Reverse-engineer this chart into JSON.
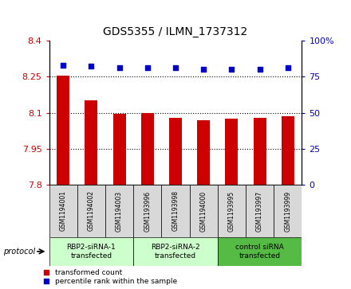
{
  "title": "GDS5355 / ILMN_1737312",
  "samples": [
    "GSM1194001",
    "GSM1194002",
    "GSM1194003",
    "GSM1193996",
    "GSM1193998",
    "GSM1194000",
    "GSM1193995",
    "GSM1193997",
    "GSM1193999"
  ],
  "bar_values": [
    8.255,
    8.15,
    8.095,
    8.1,
    8.08,
    8.07,
    8.075,
    8.08,
    8.085
  ],
  "percentile_values": [
    83,
    82,
    81,
    81,
    81,
    80,
    80,
    80,
    81
  ],
  "ylim_left": [
    7.8,
    8.4
  ],
  "ylim_right": [
    0,
    100
  ],
  "yticks_left": [
    7.8,
    7.95,
    8.1,
    8.25,
    8.4
  ],
  "yticks_right": [
    0,
    25,
    50,
    75,
    100
  ],
  "bar_color": "#cc0000",
  "dot_color": "#0000cc",
  "sample_box_color": "#d8d8d8",
  "group_labels": [
    "RBP2-siRNA-1\ntransfected",
    "RBP2-siRNA-2\ntransfected",
    "control siRNA\ntransfected"
  ],
  "group_ranges": [
    [
      0,
      3
    ],
    [
      3,
      6
    ],
    [
      6,
      9
    ]
  ],
  "group_colors": [
    "#ccffcc",
    "#ccffcc",
    "#55bb44"
  ],
  "protocol_label": "protocol",
  "legend_bar_label": "transformed count",
  "legend_dot_label": "percentile rank within the sample"
}
